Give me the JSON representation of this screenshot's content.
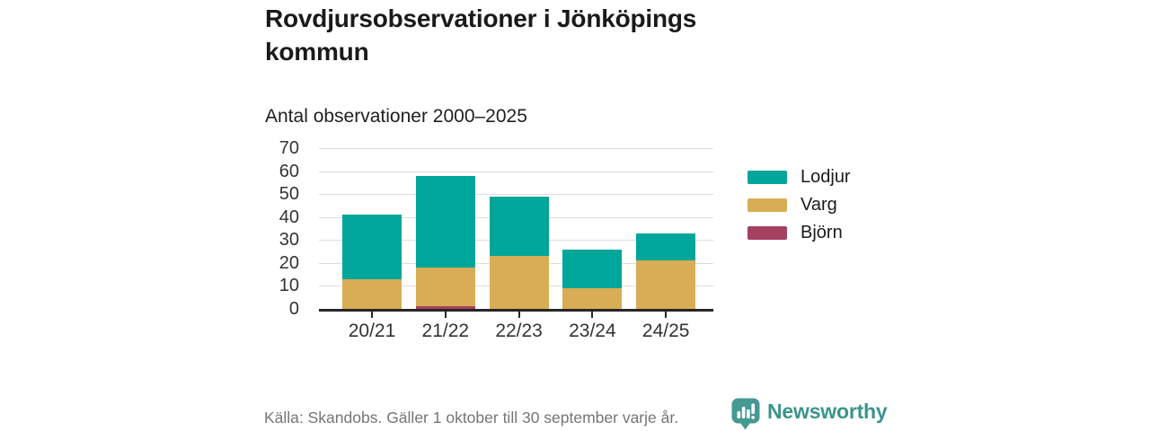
{
  "header": {
    "title": "Rovdjursobservationer i Jönköpings kommun",
    "subtitle": "Antal observationer 2000–2025"
  },
  "chart_data": {
    "type": "bar",
    "stacked": true,
    "title": "Rovdjursobservationer i Jönköpings kommun",
    "subtitle": "Antal observationer 2000–2025",
    "categories": [
      "20/21",
      "21/22",
      "22/23",
      "23/24",
      "24/25"
    ],
    "series": [
      {
        "name": "Lodjur",
        "color": "#00a69a",
        "values": [
          28,
          40,
          26,
          17,
          12
        ]
      },
      {
        "name": "Varg",
        "color": "#d9ad55",
        "values": [
          13,
          17,
          23,
          9,
          21
        ]
      },
      {
        "name": "Björn",
        "color": "#a4415f",
        "values": [
          0,
          1,
          0,
          0,
          0
        ]
      }
    ],
    "totals": [
      41,
      58,
      49,
      26,
      33
    ],
    "ylim": [
      0,
      70
    ],
    "ytick_step": 10,
    "yticks": [
      0,
      10,
      20,
      30,
      40,
      50,
      60,
      70
    ],
    "grid": true,
    "legend_position": "right",
    "grid_color": "#dcdcdc",
    "axis_color": "#262626"
  },
  "footer": {
    "source": "Källa: Skandobs. Gäller 1 oktober till 30 september varje år.",
    "brand": "Newsworthy",
    "brand_color": "#3a948c"
  }
}
